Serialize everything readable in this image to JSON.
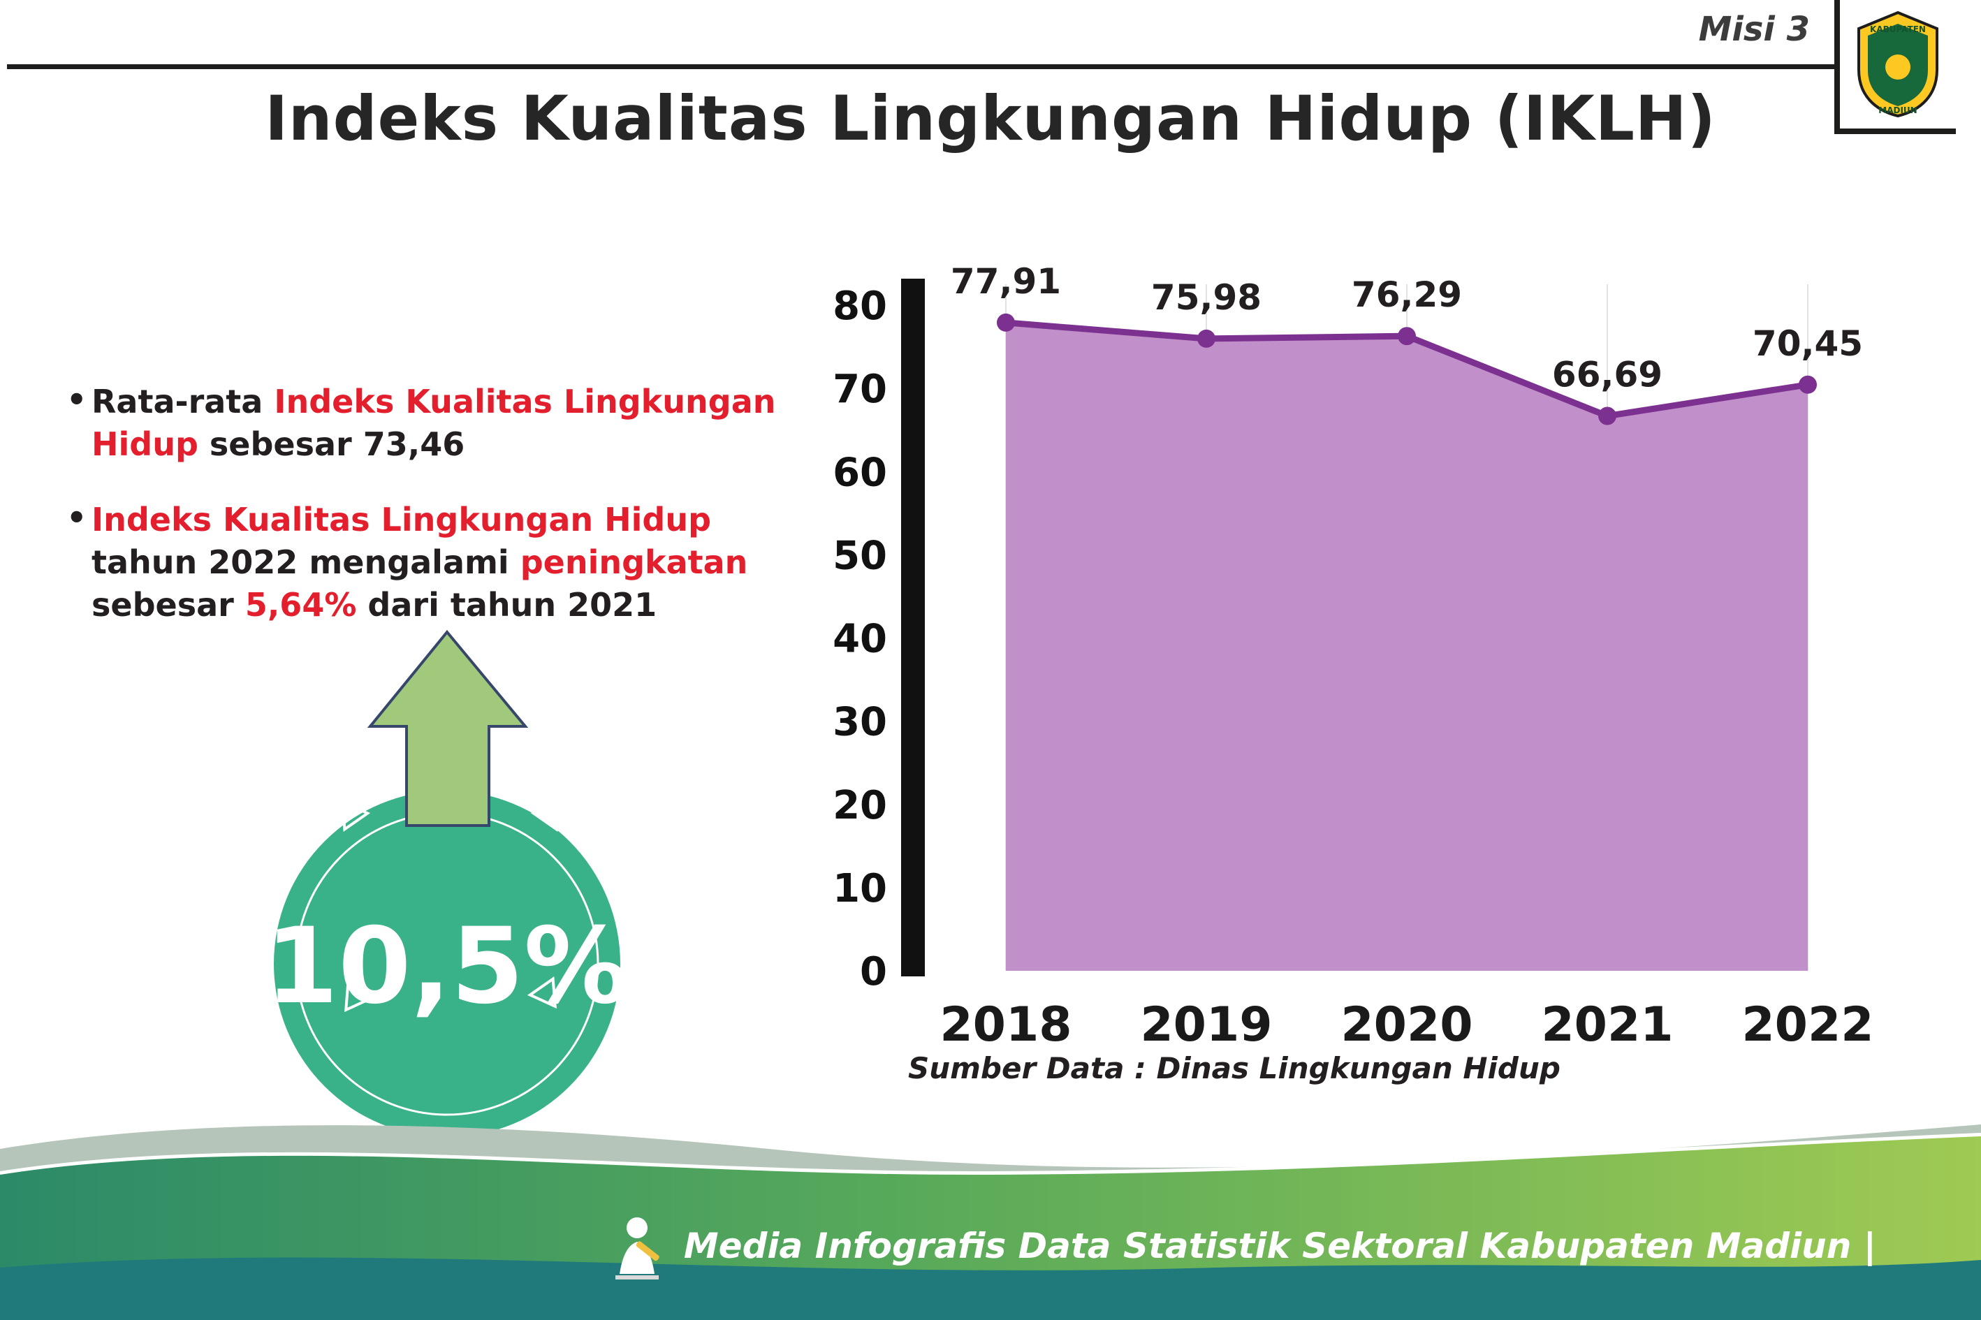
{
  "header": {
    "misi_label": "Misi 3",
    "logo": {
      "text_top": "KABUPATEN",
      "text_bottom": "MADIUN"
    }
  },
  "title": "Indeks Kualitas Lingkungan Hidup (IKLH)",
  "bullet_glyph": "•",
  "bullets": [
    {
      "parts": [
        {
          "text": "Rata-rata ",
          "red": false
        },
        {
          "text": "Indeks Kualitas Lingkungan Hidup",
          "red": true
        },
        {
          "text": " sebesar 73,46",
          "red": false
        }
      ]
    },
    {
      "parts": [
        {
          "text": "Indeks Kualitas Lingkungan Hidup",
          "red": true
        },
        {
          "text": " tahun 2022 mengalami ",
          "red": false
        },
        {
          "text": "peningkatan",
          "red": true
        },
        {
          "text": " sebesar ",
          "red": false
        },
        {
          "text": "5,64%",
          "red": true
        },
        {
          "text": " dari tahun 2021",
          "red": false
        }
      ]
    }
  ],
  "badge": {
    "value": "10,5%"
  },
  "chart_data": {
    "type": "area",
    "title": "Indeks Kualitas Lingkungan Hidup (IKLH)",
    "categories": [
      "2018",
      "2019",
      "2020",
      "2021",
      "2022"
    ],
    "values": [
      77.91,
      75.98,
      76.29,
      66.69,
      70.45
    ],
    "value_labels": [
      "77,91",
      "75,98",
      "76,29",
      "66,69",
      "70,45"
    ],
    "ylim": [
      0,
      80
    ],
    "yticks": [
      0,
      10,
      20,
      30,
      40,
      50,
      60,
      70,
      80
    ],
    "grid": "vertical-light",
    "legend": "none",
    "xlabel": "",
    "ylabel": "",
    "colors": {
      "line": "#7c3190",
      "fill": "#c18fca",
      "point": "#7c3190",
      "axis": "#111111"
    },
    "source": "Sumber Data : Dinas Lingkungan Hidup"
  },
  "footer": {
    "credit": "Media Infografis Data Statistik Sektoral Kabupaten Madiun |"
  },
  "accents": {
    "badge_circle": "#39b28a",
    "badge_arrow": "#a0c97c",
    "footer_teal": "#207a7c"
  }
}
